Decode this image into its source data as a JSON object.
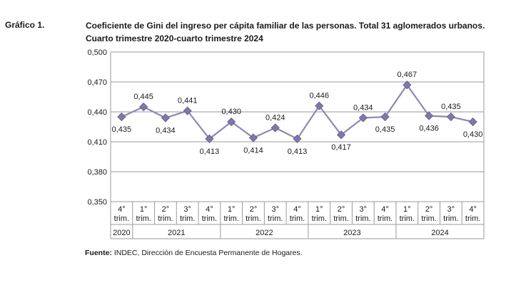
{
  "header": {
    "label": "Gráfico 1.",
    "title_line1": "Coeficiente de Gini del ingreso per cápita familiar de las personas. Total 31 aglomerados urbanos.",
    "title_line2": "Cuarto trimestre 2020-cuarto trimestre 2024"
  },
  "source": {
    "prefix": "Fuente:",
    "text": " INDEC, Dirección de Encuesta Permanente de Hogares."
  },
  "chart_data": {
    "type": "line",
    "title": "Coeficiente de Gini del ingreso per cápita familiar de las personas. Total 31 aglomerados urbanos.",
    "subtitle": "Cuarto trimestre 2020-cuarto trimestre 2024",
    "categories": [
      {
        "quarter": "4°",
        "unit": "trim.",
        "year": "2020"
      },
      {
        "quarter": "1°",
        "unit": "trim.",
        "year": "2021"
      },
      {
        "quarter": "2°",
        "unit": "trim.",
        "year": "2021"
      },
      {
        "quarter": "3°",
        "unit": "trim.",
        "year": "2021"
      },
      {
        "quarter": "4°",
        "unit": "trim.",
        "year": "2021"
      },
      {
        "quarter": "1°",
        "unit": "trim.",
        "year": "2022"
      },
      {
        "quarter": "2°",
        "unit": "trim.",
        "year": "2022"
      },
      {
        "quarter": "3°",
        "unit": "trim.",
        "year": "2022"
      },
      {
        "quarter": "4°",
        "unit": "trim.",
        "year": "2022"
      },
      {
        "quarter": "1°",
        "unit": "trim.",
        "year": "2023"
      },
      {
        "quarter": "2°",
        "unit": "trim.",
        "year": "2023"
      },
      {
        "quarter": "3°",
        "unit": "trim.",
        "year": "2023"
      },
      {
        "quarter": "4°",
        "unit": "trim.",
        "year": "2023"
      },
      {
        "quarter": "1°",
        "unit": "trim.",
        "year": "2024"
      },
      {
        "quarter": "2°",
        "unit": "trim.",
        "year": "2024"
      },
      {
        "quarter": "3°",
        "unit": "trim.",
        "year": "2024"
      },
      {
        "quarter": "4°",
        "unit": "trim.",
        "year": "2024"
      }
    ],
    "years": [
      "2020",
      "2021",
      "2022",
      "2023",
      "2024"
    ],
    "values": [
      0.435,
      0.445,
      0.434,
      0.441,
      0.413,
      0.43,
      0.414,
      0.424,
      0.413,
      0.446,
      0.417,
      0.434,
      0.435,
      0.467,
      0.436,
      0.435,
      0.43
    ],
    "value_labels": [
      "0,435",
      "0,445",
      "0,434",
      "0,441",
      "0,413",
      "0,430",
      "0,414",
      "0,424",
      "0,413",
      "0,446",
      "0,417",
      "0,434",
      "0,435",
      "0,467",
      "0,436",
      "0,435",
      "0,430"
    ],
    "label_positions": [
      "below",
      "above",
      "below",
      "above",
      "below",
      "above",
      "below",
      "above",
      "below",
      "above",
      "below",
      "above",
      "below",
      "above",
      "below",
      "above",
      "below"
    ],
    "ylim": [
      0.35,
      0.5
    ],
    "yticks": [
      0.35,
      0.38,
      0.41,
      0.44,
      0.47,
      0.5
    ],
    "ytick_labels": [
      "0,350",
      "0,380",
      "0,410",
      "0,440",
      "0,470",
      "0,500"
    ],
    "grid": true,
    "colors": {
      "line": "#8e88b3",
      "marker": "#7f79a8",
      "marker_edge": "#5e5887",
      "grid": "#9a9a9a",
      "text": "#1a1a1a"
    }
  }
}
